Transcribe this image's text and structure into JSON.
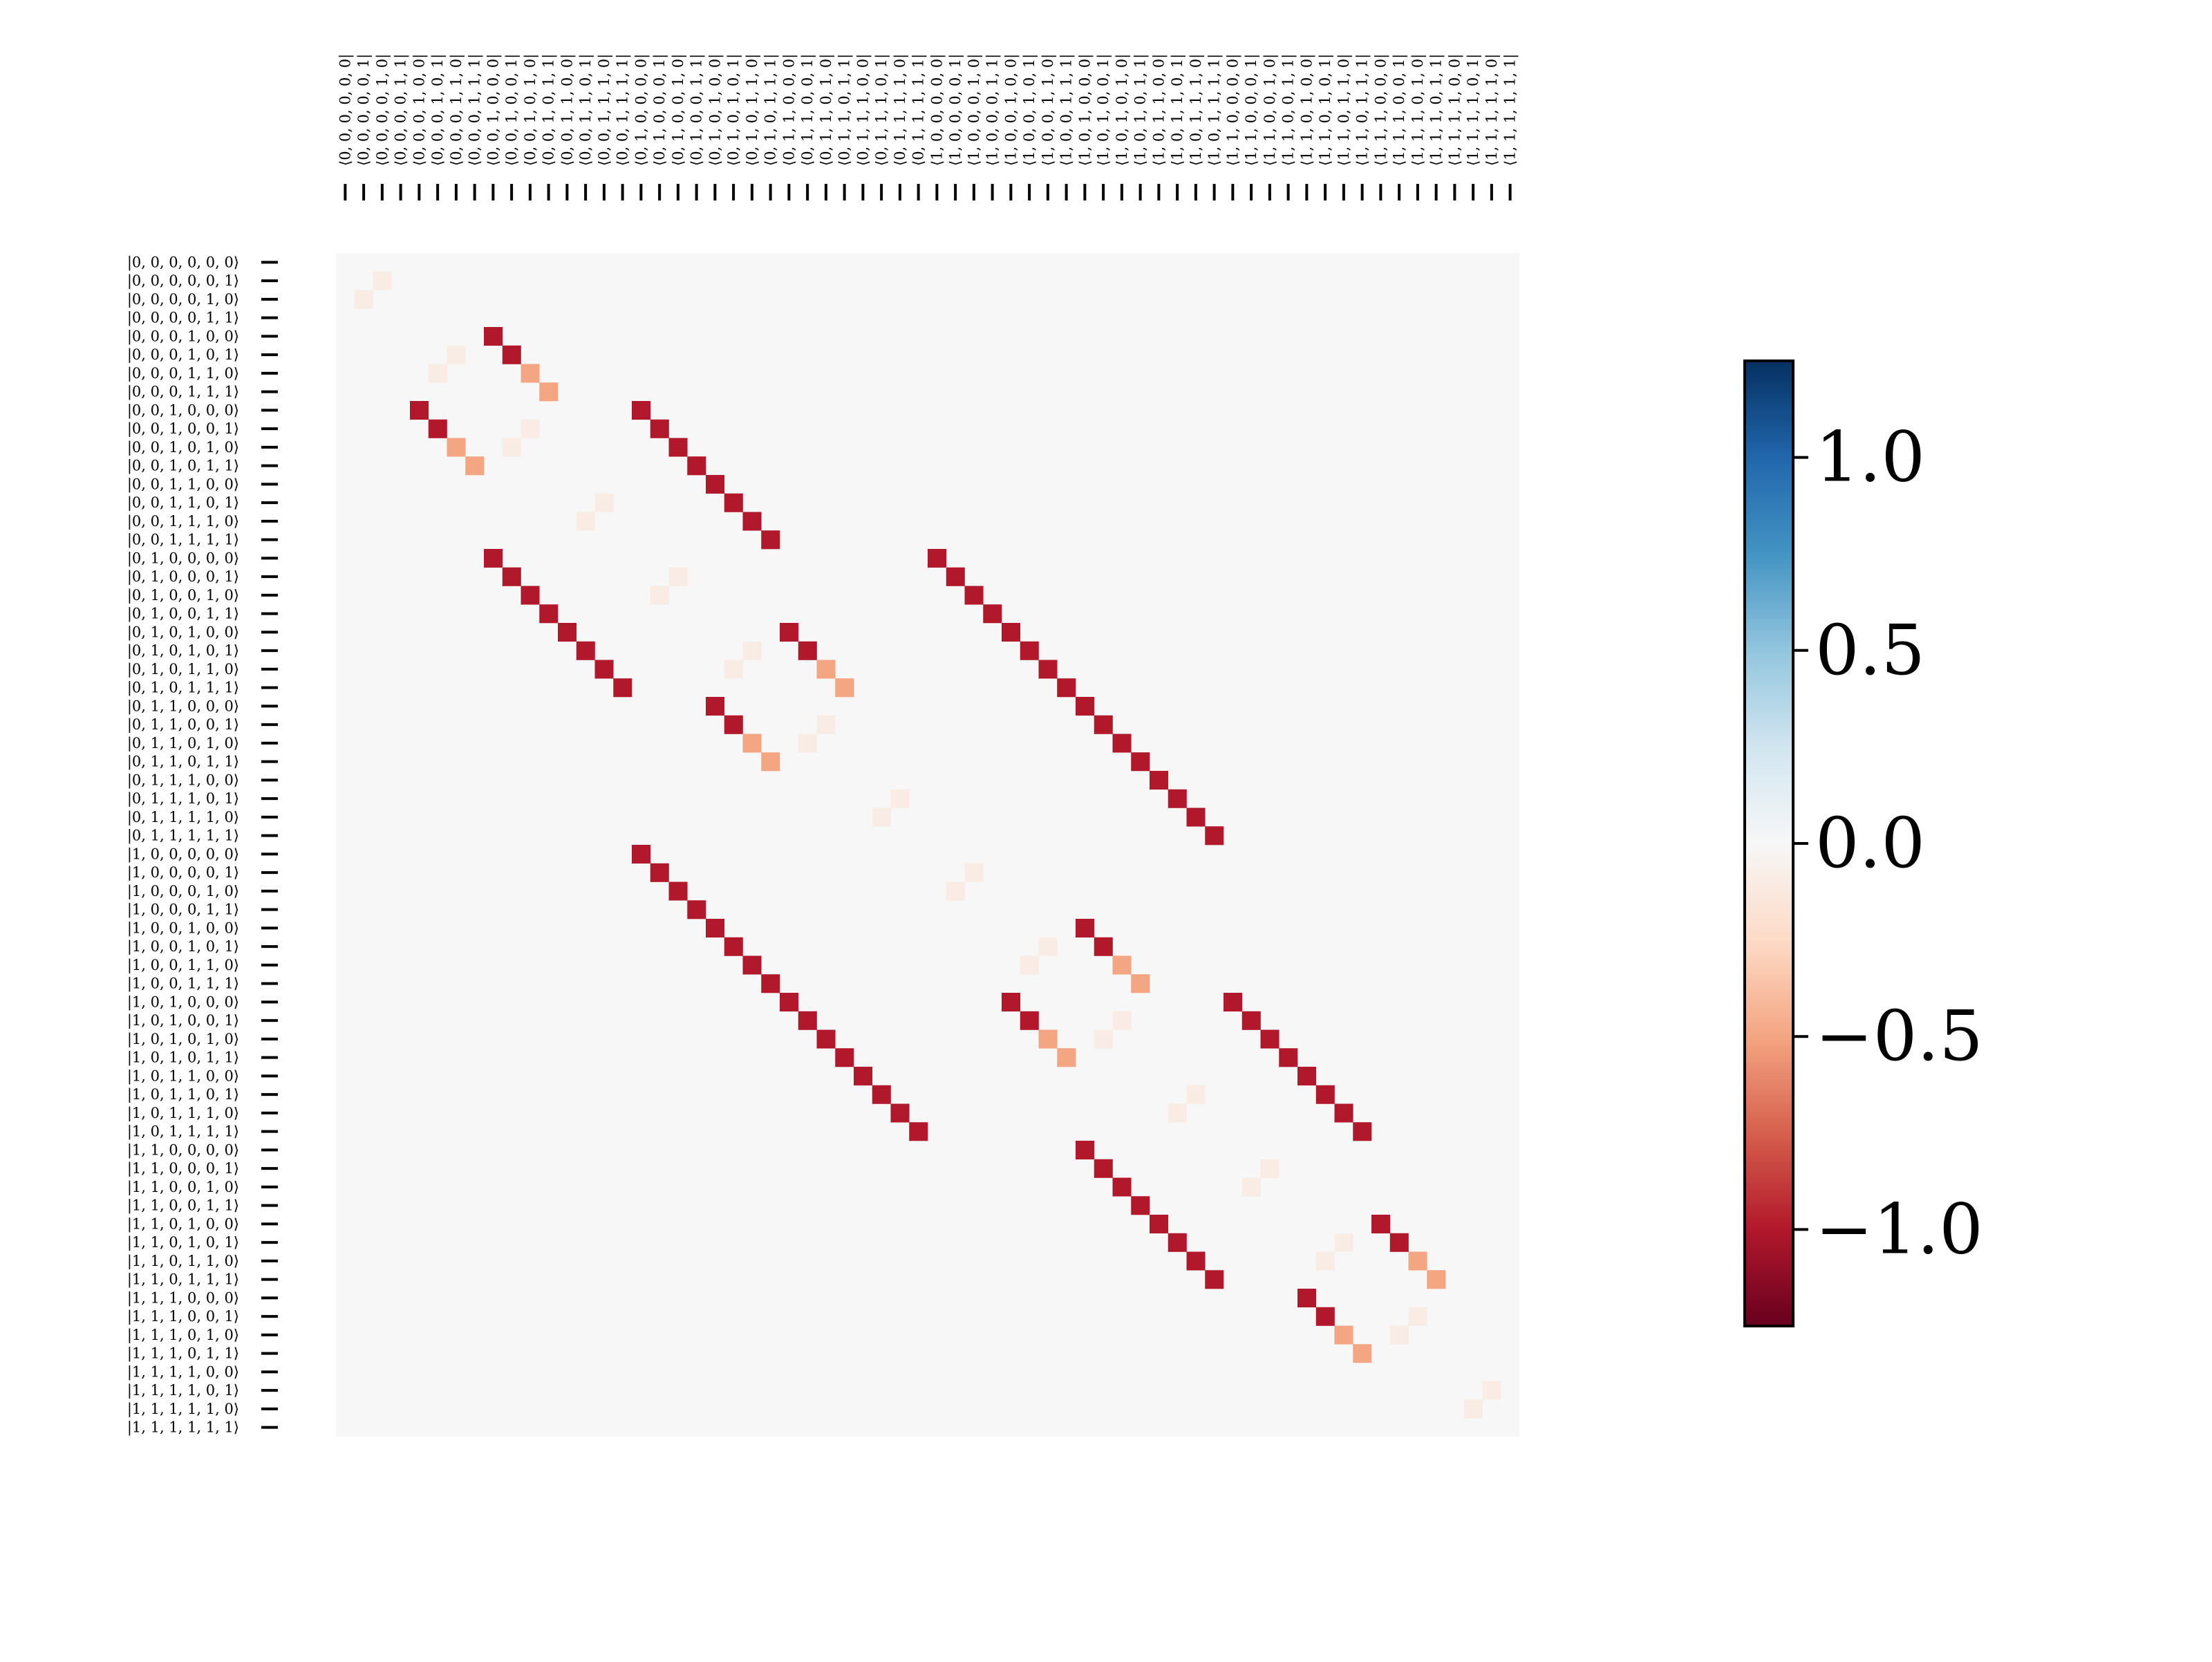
{
  "chart_data": {
    "type": "heatmap",
    "title": "",
    "xlabel": "",
    "ylabel": "",
    "row_labels": [
      "|0, 0, 0, 0, 0, 0⟩",
      "|0, 0, 0, 0, 0, 1⟩",
      "|0, 0, 0, 0, 1, 0⟩",
      "|0, 0, 0, 0, 1, 1⟩",
      "|0, 0, 0, 1, 0, 0⟩",
      "|0, 0, 0, 1, 0, 1⟩",
      "|0, 0, 0, 1, 1, 0⟩",
      "|0, 0, 0, 1, 1, 1⟩",
      "|0, 0, 1, 0, 0, 0⟩",
      "|0, 0, 1, 0, 0, 1⟩",
      "|0, 0, 1, 0, 1, 0⟩",
      "|0, 0, 1, 0, 1, 1⟩",
      "|0, 0, 1, 1, 0, 0⟩",
      "|0, 0, 1, 1, 0, 1⟩",
      "|0, 0, 1, 1, 1, 0⟩",
      "|0, 0, 1, 1, 1, 1⟩",
      "|0, 1, 0, 0, 0, 0⟩",
      "|0, 1, 0, 0, 0, 1⟩",
      "|0, 1, 0, 0, 1, 0⟩",
      "|0, 1, 0, 0, 1, 1⟩",
      "|0, 1, 0, 1, 0, 0⟩",
      "|0, 1, 0, 1, 0, 1⟩",
      "|0, 1, 0, 1, 1, 0⟩",
      "|0, 1, 0, 1, 1, 1⟩",
      "|0, 1, 1, 0, 0, 0⟩",
      "|0, 1, 1, 0, 0, 1⟩",
      "|0, 1, 1, 0, 1, 0⟩",
      "|0, 1, 1, 0, 1, 1⟩",
      "|0, 1, 1, 1, 0, 0⟩",
      "|0, 1, 1, 1, 0, 1⟩",
      "|0, 1, 1, 1, 1, 0⟩",
      "|0, 1, 1, 1, 1, 1⟩",
      "|1, 0, 0, 0, 0, 0⟩",
      "|1, 0, 0, 0, 0, 1⟩",
      "|1, 0, 0, 0, 1, 0⟩",
      "|1, 0, 0, 0, 1, 1⟩",
      "|1, 0, 0, 1, 0, 0⟩",
      "|1, 0, 0, 1, 0, 1⟩",
      "|1, 0, 0, 1, 1, 0⟩",
      "|1, 0, 0, 1, 1, 1⟩",
      "|1, 0, 1, 0, 0, 0⟩",
      "|1, 0, 1, 0, 0, 1⟩",
      "|1, 0, 1, 0, 1, 0⟩",
      "|1, 0, 1, 0, 1, 1⟩",
      "|1, 0, 1, 1, 0, 0⟩",
      "|1, 0, 1, 1, 0, 1⟩",
      "|1, 0, 1, 1, 1, 0⟩",
      "|1, 0, 1, 1, 1, 1⟩",
      "|1, 1, 0, 0, 0, 0⟩",
      "|1, 1, 0, 0, 0, 1⟩",
      "|1, 1, 0, 0, 1, 0⟩",
      "|1, 1, 0, 0, 1, 1⟩",
      "|1, 1, 0, 1, 0, 0⟩",
      "|1, 1, 0, 1, 0, 1⟩",
      "|1, 1, 0, 1, 1, 0⟩",
      "|1, 1, 0, 1, 1, 1⟩",
      "|1, 1, 1, 0, 0, 0⟩",
      "|1, 1, 1, 0, 0, 1⟩",
      "|1, 1, 1, 0, 1, 0⟩",
      "|1, 1, 1, 0, 1, 1⟩",
      "|1, 1, 1, 1, 0, 0⟩",
      "|1, 1, 1, 1, 0, 1⟩",
      "|1, 1, 1, 1, 1, 0⟩",
      "|1, 1, 1, 1, 1, 1⟩"
    ],
    "col_labels": [
      "⟨0, 0, 0, 0, 0, 0|",
      "⟨0, 0, 0, 0, 0, 1|",
      "⟨0, 0, 0, 0, 1, 0|",
      "⟨0, 0, 0, 0, 1, 1|",
      "⟨0, 0, 0, 1, 0, 0|",
      "⟨0, 0, 0, 1, 0, 1|",
      "⟨0, 0, 0, 1, 1, 0|",
      "⟨0, 0, 0, 1, 1, 1|",
      "⟨0, 0, 1, 0, 0, 0|",
      "⟨0, 0, 1, 0, 0, 1|",
      "⟨0, 0, 1, 0, 1, 0|",
      "⟨0, 0, 1, 0, 1, 1|",
      "⟨0, 0, 1, 1, 0, 0|",
      "⟨0, 0, 1, 1, 0, 1|",
      "⟨0, 0, 1, 1, 1, 0|",
      "⟨0, 0, 1, 1, 1, 1|",
      "⟨0, 1, 0, 0, 0, 0|",
      "⟨0, 1, 0, 0, 0, 1|",
      "⟨0, 1, 0, 0, 1, 0|",
      "⟨0, 1, 0, 0, 1, 1|",
      "⟨0, 1, 0, 1, 0, 0|",
      "⟨0, 1, 0, 1, 0, 1|",
      "⟨0, 1, 0, 1, 1, 0|",
      "⟨0, 1, 0, 1, 1, 1|",
      "⟨0, 1, 1, 0, 0, 0|",
      "⟨0, 1, 1, 0, 0, 1|",
      "⟨0, 1, 1, 0, 1, 0|",
      "⟨0, 1, 1, 0, 1, 1|",
      "⟨0, 1, 1, 1, 0, 0|",
      "⟨0, 1, 1, 1, 0, 1|",
      "⟨0, 1, 1, 1, 1, 0|",
      "⟨0, 1, 1, 1, 1, 1|",
      "⟨1, 0, 0, 0, 0, 0|",
      "⟨1, 0, 0, 0, 0, 1|",
      "⟨1, 0, 0, 0, 1, 0|",
      "⟨1, 0, 0, 0, 1, 1|",
      "⟨1, 0, 0, 1, 0, 0|",
      "⟨1, 0, 0, 1, 0, 1|",
      "⟨1, 0, 0, 1, 1, 0|",
      "⟨1, 0, 0, 1, 1, 1|",
      "⟨1, 0, 1, 0, 0, 0|",
      "⟨1, 0, 1, 0, 0, 1|",
      "⟨1, 0, 1, 0, 1, 0|",
      "⟨1, 0, 1, 0, 1, 1|",
      "⟨1, 0, 1, 1, 0, 0|",
      "⟨1, 0, 1, 1, 0, 1|",
      "⟨1, 0, 1, 1, 1, 0|",
      "⟨1, 0, 1, 1, 1, 1|",
      "⟨1, 1, 0, 0, 0, 0|",
      "⟨1, 1, 0, 0, 0, 1|",
      "⟨1, 1, 0, 0, 1, 0|",
      "⟨1, 1, 0, 0, 1, 1|",
      "⟨1, 1, 0, 1, 0, 0|",
      "⟨1, 1, 0, 1, 0, 1|",
      "⟨1, 1, 0, 1, 1, 0|",
      "⟨1, 1, 0, 1, 1, 1|",
      "⟨1, 1, 1, 0, 0, 0|",
      "⟨1, 1, 1, 0, 0, 1|",
      "⟨1, 1, 1, 0, 1, 0|",
      "⟨1, 1, 1, 0, 1, 1|",
      "⟨1, 1, 1, 1, 0, 0|",
      "⟨1, 1, 1, 1, 0, 1|",
      "⟨1, 1, 1, 1, 1, 0|",
      "⟨1, 1, 1, 1, 1, 1|"
    ],
    "default_value": 0.0,
    "cells": [
      [
        1,
        2,
        -0.1
      ],
      [
        2,
        1,
        -0.1
      ],
      [
        4,
        8,
        -1.0
      ],
      [
        5,
        9,
        -1.0
      ],
      [
        6,
        10,
        -0.5
      ],
      [
        7,
        11,
        -0.5
      ],
      [
        8,
        4,
        -1.0
      ],
      [
        9,
        5,
        -1.0
      ],
      [
        10,
        6,
        -0.5
      ],
      [
        11,
        7,
        -0.5
      ],
      [
        5,
        6,
        -0.1
      ],
      [
        6,
        5,
        -0.1
      ],
      [
        9,
        10,
        -0.1
      ],
      [
        10,
        9,
        -0.1
      ],
      [
        8,
        16,
        -1.0
      ],
      [
        9,
        17,
        -1.0
      ],
      [
        10,
        18,
        -1.0
      ],
      [
        11,
        19,
        -1.0
      ],
      [
        12,
        20,
        -1.0
      ],
      [
        13,
        21,
        -1.0
      ],
      [
        14,
        22,
        -1.0
      ],
      [
        15,
        23,
        -1.0
      ],
      [
        16,
        8,
        -1.0
      ],
      [
        17,
        9,
        -1.0
      ],
      [
        18,
        10,
        -1.0
      ],
      [
        19,
        11,
        -1.0
      ],
      [
        20,
        12,
        -1.0
      ],
      [
        21,
        13,
        -1.0
      ],
      [
        22,
        14,
        -1.0
      ],
      [
        23,
        15,
        -1.0
      ],
      [
        13,
        14,
        -0.1
      ],
      [
        14,
        13,
        -0.1
      ],
      [
        17,
        18,
        -0.1
      ],
      [
        18,
        17,
        -0.1
      ],
      [
        16,
        32,
        -1.0
      ],
      [
        17,
        33,
        -1.0
      ],
      [
        18,
        34,
        -1.0
      ],
      [
        19,
        35,
        -1.0
      ],
      [
        20,
        36,
        -1.0
      ],
      [
        21,
        37,
        -1.0
      ],
      [
        22,
        38,
        -1.0
      ],
      [
        23,
        39,
        -1.0
      ],
      [
        24,
        40,
        -1.0
      ],
      [
        25,
        41,
        -1.0
      ],
      [
        26,
        42,
        -1.0
      ],
      [
        27,
        43,
        -1.0
      ],
      [
        28,
        44,
        -1.0
      ],
      [
        29,
        45,
        -1.0
      ],
      [
        30,
        46,
        -1.0
      ],
      [
        31,
        47,
        -1.0
      ],
      [
        32,
        16,
        -1.0
      ],
      [
        33,
        17,
        -1.0
      ],
      [
        34,
        18,
        -1.0
      ],
      [
        35,
        19,
        -1.0
      ],
      [
        36,
        20,
        -1.0
      ],
      [
        37,
        21,
        -1.0
      ],
      [
        38,
        22,
        -1.0
      ],
      [
        39,
        23,
        -1.0
      ],
      [
        40,
        24,
        -1.0
      ],
      [
        41,
        25,
        -1.0
      ],
      [
        42,
        26,
        -1.0
      ],
      [
        43,
        27,
        -1.0
      ],
      [
        44,
        28,
        -1.0
      ],
      [
        45,
        29,
        -1.0
      ],
      [
        46,
        30,
        -1.0
      ],
      [
        47,
        31,
        -1.0
      ],
      [
        20,
        24,
        -1.0
      ],
      [
        21,
        25,
        -1.0
      ],
      [
        22,
        26,
        -0.5
      ],
      [
        23,
        27,
        -0.5
      ],
      [
        24,
        20,
        -1.0
      ],
      [
        25,
        21,
        -1.0
      ],
      [
        26,
        22,
        -0.5
      ],
      [
        27,
        23,
        -0.5
      ],
      [
        21,
        22,
        -0.1
      ],
      [
        22,
        21,
        -0.1
      ],
      [
        25,
        26,
        -0.1
      ],
      [
        26,
        25,
        -0.1
      ],
      [
        29,
        30,
        -0.1
      ],
      [
        30,
        29,
        -0.1
      ],
      [
        33,
        34,
        -0.1
      ],
      [
        34,
        33,
        -0.1
      ],
      [
        36,
        40,
        -1.0
      ],
      [
        37,
        41,
        -1.0
      ],
      [
        38,
        42,
        -0.5
      ],
      [
        39,
        43,
        -0.5
      ],
      [
        40,
        36,
        -1.0
      ],
      [
        41,
        37,
        -1.0
      ],
      [
        42,
        38,
        -0.5
      ],
      [
        43,
        39,
        -0.5
      ],
      [
        37,
        38,
        -0.1
      ],
      [
        38,
        37,
        -0.1
      ],
      [
        41,
        42,
        -0.1
      ],
      [
        42,
        41,
        -0.1
      ],
      [
        40,
        48,
        -1.0
      ],
      [
        41,
        49,
        -1.0
      ],
      [
        42,
        50,
        -1.0
      ],
      [
        43,
        51,
        -1.0
      ],
      [
        44,
        52,
        -1.0
      ],
      [
        45,
        53,
        -1.0
      ],
      [
        46,
        54,
        -1.0
      ],
      [
        47,
        55,
        -1.0
      ],
      [
        48,
        40,
        -1.0
      ],
      [
        49,
        41,
        -1.0
      ],
      [
        50,
        42,
        -1.0
      ],
      [
        51,
        43,
        -1.0
      ],
      [
        52,
        44,
        -1.0
      ],
      [
        53,
        45,
        -1.0
      ],
      [
        54,
        46,
        -1.0
      ],
      [
        55,
        47,
        -1.0
      ],
      [
        45,
        46,
        -0.1
      ],
      [
        46,
        45,
        -0.1
      ],
      [
        49,
        50,
        -0.1
      ],
      [
        50,
        49,
        -0.1
      ],
      [
        52,
        56,
        -1.0
      ],
      [
        53,
        57,
        -1.0
      ],
      [
        54,
        58,
        -0.5
      ],
      [
        55,
        59,
        -0.5
      ],
      [
        56,
        52,
        -1.0
      ],
      [
        57,
        53,
        -1.0
      ],
      [
        58,
        54,
        -0.5
      ],
      [
        59,
        55,
        -0.5
      ],
      [
        53,
        54,
        -0.1
      ],
      [
        54,
        53,
        -0.1
      ],
      [
        57,
        58,
        -0.1
      ],
      [
        58,
        57,
        -0.1
      ],
      [
        61,
        62,
        -0.1
      ],
      [
        62,
        61,
        -0.1
      ]
    ],
    "colorbar": {
      "cmap": "RdBu",
      "vmin": -1.25,
      "vmax": 1.25,
      "ticks": [
        -1.0,
        -0.5,
        0.0,
        0.5,
        1.0
      ],
      "tick_labels": [
        "−1.0",
        "−0.5",
        "0.0",
        "0.5",
        "1.0"
      ]
    },
    "grid": false,
    "legend": "colorbar right"
  }
}
